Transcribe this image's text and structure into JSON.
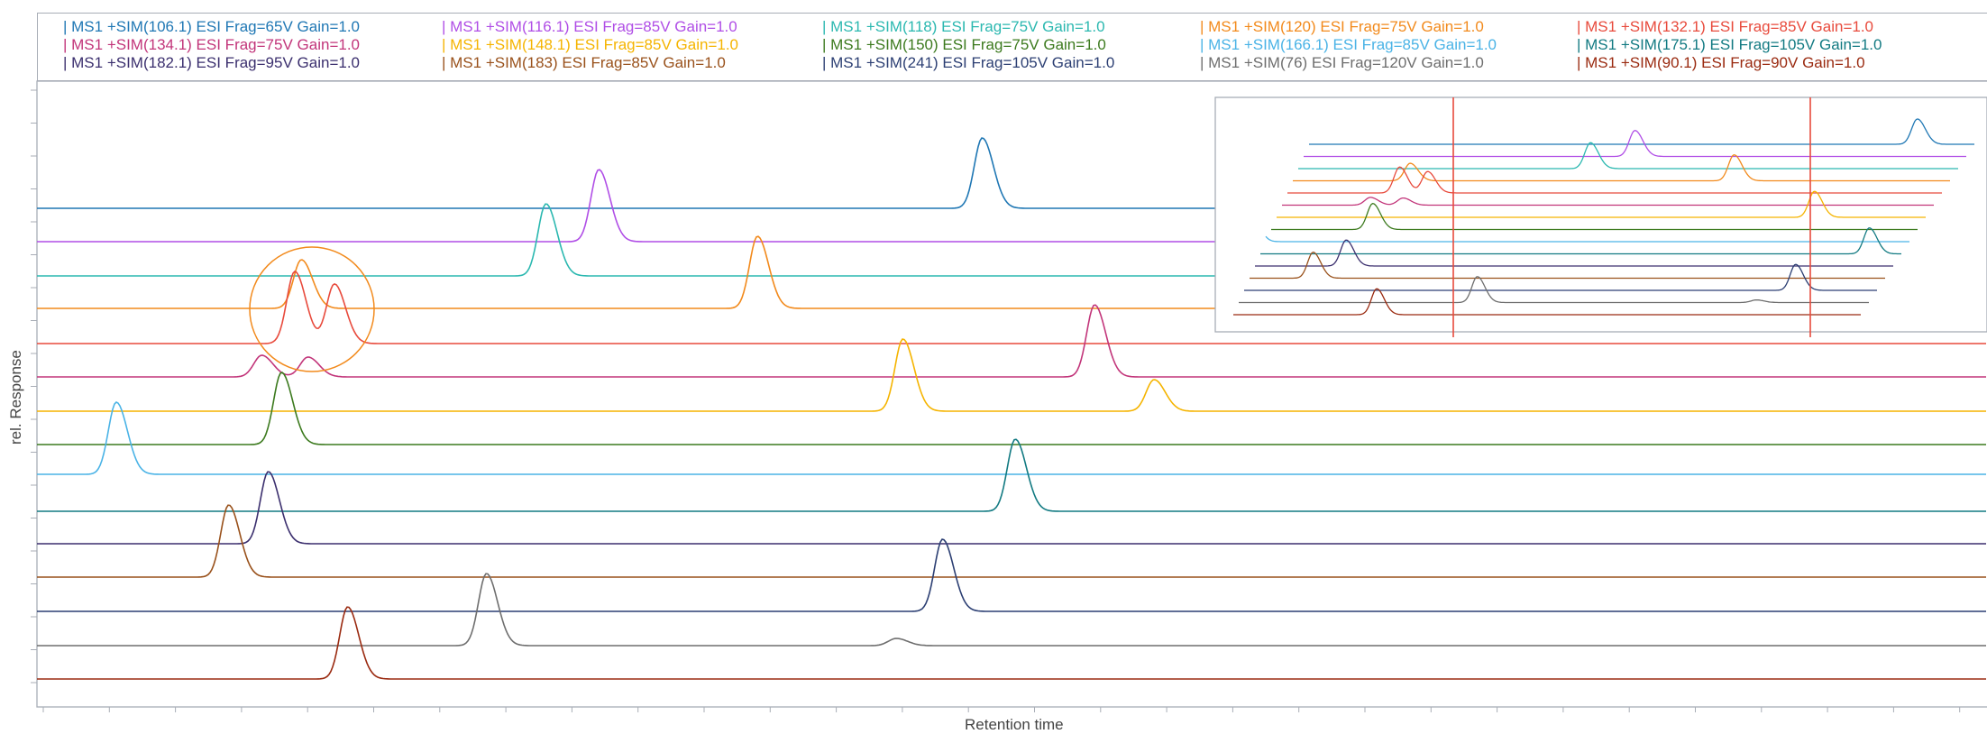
{
  "chart_data": {
    "type": "line",
    "xlabel": "Retention time",
    "ylabel": "rel. Response",
    "x_range": [
      0,
      29.5
    ],
    "series": [
      {
        "name": "MS1 +SIM(106.1) ESI Frag=65V Gain=1.0",
        "color": "#1f77b4",
        "peaks": [
          {
            "rt": 14.3,
            "height": 78
          }
        ]
      },
      {
        "name": "MS1 +SIM(116.1) ESI Frag=85V Gain=1.0",
        "color": "#b04ee6",
        "peaks": [
          {
            "rt": 8.5,
            "height": 80
          }
        ]
      },
      {
        "name": "MS1 +SIM(118) ESI Frag=75V Gain=1.0",
        "color": "#2bb8b0",
        "peaks": [
          {
            "rt": 7.7,
            "height": 80
          }
        ]
      },
      {
        "name": "MS1 +SIM(120) ESI Frag=75V Gain=1.0",
        "color": "#f28a1c",
        "peaks": [
          {
            "rt": 4.0,
            "height": 54
          },
          {
            "rt": 10.9,
            "height": 80
          }
        ]
      },
      {
        "name": "MS1 +SIM(132.1) ESI Frag=85V Gain=1.0",
        "color": "#e84a3c",
        "peaks": [
          {
            "rt": 3.9,
            "height": 80
          },
          {
            "rt": 4.5,
            "height": 66
          }
        ]
      },
      {
        "name": "MS1 +SIM(134.1) ESI Frag=75V Gain=1.0",
        "color": "#c2357a",
        "peaks": [
          {
            "rt": 3.4,
            "height": 24
          },
          {
            "rt": 4.1,
            "height": 22
          },
          {
            "rt": 16.0,
            "height": 80
          }
        ]
      },
      {
        "name": "MS1 +SIM(148.1) ESI Frag=85V Gain=1.0",
        "color": "#f5b400",
        "peaks": [
          {
            "rt": 13.1,
            "height": 80
          },
          {
            "rt": 16.9,
            "height": 35
          }
        ]
      },
      {
        "name": "MS1 +SIM(150) ESI Frag=75V Gain=1.0",
        "color": "#3c7a1e",
        "peaks": [
          {
            "rt": 3.7,
            "height": 80
          }
        ]
      },
      {
        "name": "MS1 +SIM(166.1) ESI Frag=85V Gain=1.0",
        "color": "#4ab3e6",
        "peaks": [
          {
            "rt": 1.2,
            "height": 80
          }
        ]
      },
      {
        "name": "MS1 +SIM(175.1) ESI Frag=105V Gain=1.0",
        "color": "#127a82",
        "peaks": [
          {
            "rt": 14.8,
            "height": 80
          }
        ]
      },
      {
        "name": "MS1 +SIM(182.1) ESI Frag=95V Gain=1.0",
        "color": "#3b2f6e",
        "peaks": [
          {
            "rt": 3.5,
            "height": 80
          }
        ]
      },
      {
        "name": "MS1 +SIM(183) ESI Frag=85V Gain=1.0",
        "color": "#99511b",
        "peaks": [
          {
            "rt": 2.9,
            "height": 80
          }
        ]
      },
      {
        "name": "MS1 +SIM(241) ESI Frag=105V Gain=1.0",
        "color": "#2c3f73",
        "peaks": [
          {
            "rt": 13.7,
            "height": 80
          }
        ]
      },
      {
        "name": "MS1 +SIM(76) ESI Frag=120V Gain=1.0",
        "color": "#6e6e6e",
        "peaks": [
          {
            "rt": 6.8,
            "height": 80
          },
          {
            "rt": 13.0,
            "height": 8
          }
        ]
      },
      {
        "name": "MS1 +SIM(90.1) ESI Frag=90V Gain=1.0",
        "color": "#9a2a10",
        "peaks": [
          {
            "rt": 4.7,
            "height": 80
          }
        ]
      }
    ],
    "grid": false,
    "legend": "top",
    "inset": "stacked overview of all traces (top-right)"
  }
}
